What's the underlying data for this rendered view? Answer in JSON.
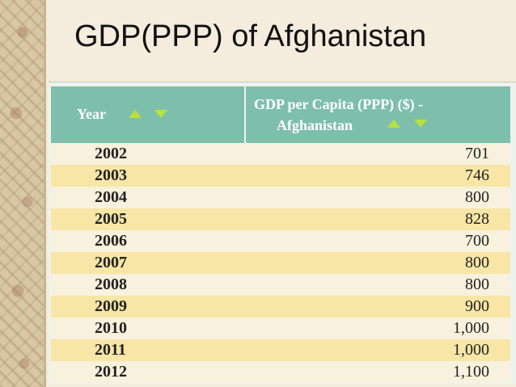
{
  "slide": {
    "title": "GDP(PPP) of Afghanistan"
  },
  "table": {
    "headers": {
      "year": "Year",
      "gdp_line1": "GDP per Capita (PPP) ($) -",
      "gdp_line2": "Afghanistan"
    },
    "rows": [
      {
        "year": "2002",
        "value": "701"
      },
      {
        "year": "2003",
        "value": "746"
      },
      {
        "year": "2004",
        "value": "800"
      },
      {
        "year": "2005",
        "value": "828"
      },
      {
        "year": "2006",
        "value": "700"
      },
      {
        "year": "2007",
        "value": "800"
      },
      {
        "year": "2008",
        "value": "800"
      },
      {
        "year": "2009",
        "value": "900"
      },
      {
        "year": "2010",
        "value": "1,000"
      },
      {
        "year": "2011",
        "value": "1,000"
      },
      {
        "year": "2012",
        "value": "1,100"
      }
    ]
  },
  "icons": {
    "sort_ascending": "triangle-up-icon",
    "sort_descending": "triangle-down-icon"
  },
  "colors": {
    "header_bg": "#7ebfac",
    "row_light": "#f8f1dd",
    "row_highlight": "#f7e6a6",
    "sort_arrow": "#b8e23a"
  }
}
